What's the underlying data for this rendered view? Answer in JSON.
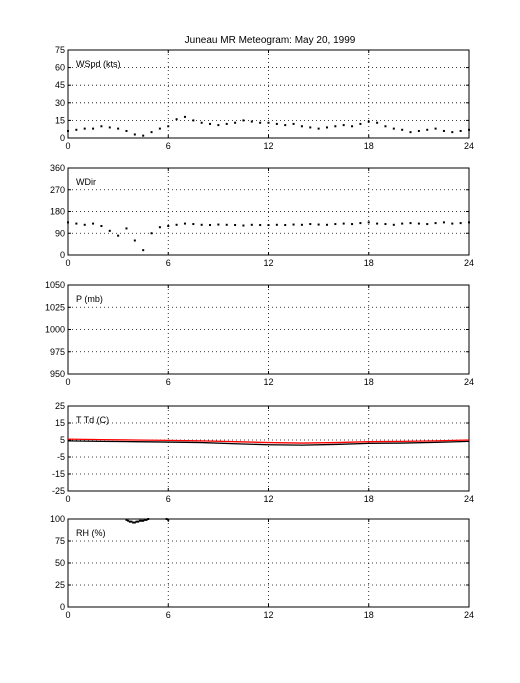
{
  "figure": {
    "title": "Juneau MR Meteogram:        May 20, 1999"
  },
  "chart_data": [
    {
      "type": "scatter",
      "label": "WSpd (kts)",
      "xlim": [
        0,
        24
      ],
      "ylim": [
        0,
        75
      ],
      "xticks": [
        "0",
        "6",
        "12",
        "18",
        "24"
      ],
      "yticks": [
        "0",
        "15",
        "30",
        "45",
        "60",
        "75"
      ],
      "grid": true,
      "series": [
        {
          "color": "#000000",
          "x": [
            0,
            0.5,
            1,
            1.5,
            2,
            2.5,
            3,
            3.5,
            4,
            4.5,
            5,
            5.5,
            6,
            6.5,
            7,
            7.5,
            8,
            8.5,
            9,
            9.5,
            10,
            10.5,
            11,
            11.5,
            12,
            12.5,
            13,
            13.5,
            14,
            14.5,
            15,
            15.5,
            16,
            16.5,
            17,
            17.5,
            18,
            18.5,
            19,
            19.5,
            20,
            20.5,
            21,
            21.5,
            22,
            22.5,
            23,
            23.5,
            24
          ],
          "y": [
            6,
            7,
            8,
            8,
            10,
            9,
            8,
            6,
            3,
            2,
            5,
            8,
            10,
            16,
            18,
            15,
            13,
            12,
            11,
            12,
            13,
            15,
            14,
            13,
            13,
            12,
            11,
            12,
            10,
            9,
            8,
            9,
            10,
            11,
            10,
            12,
            14,
            13,
            10,
            8,
            7,
            5,
            6,
            7,
            8,
            6,
            5,
            6,
            7
          ]
        }
      ]
    },
    {
      "type": "scatter",
      "label": "WDir",
      "xlim": [
        0,
        24
      ],
      "ylim": [
        0,
        360
      ],
      "xticks": [
        "0",
        "6",
        "12",
        "18",
        "24"
      ],
      "yticks": [
        "0",
        "90",
        "180",
        "270",
        "360"
      ],
      "grid": true,
      "series": [
        {
          "color": "#000000",
          "x": [
            0,
            0.5,
            1,
            1.5,
            2,
            2.5,
            3,
            3.5,
            4,
            4.5,
            5,
            5.5,
            6,
            6.5,
            7,
            7.5,
            8,
            8.5,
            9,
            9.5,
            10,
            10.5,
            11,
            11.5,
            12,
            12.5,
            13,
            13.5,
            14,
            14.5,
            15,
            15.5,
            16,
            16.5,
            17,
            17.5,
            18,
            18.5,
            19,
            19.5,
            20,
            20.5,
            21,
            21.5,
            22,
            22.5,
            23,
            23.5,
            24
          ],
          "y": [
            135,
            130,
            125,
            130,
            120,
            100,
            80,
            110,
            60,
            20,
            90,
            115,
            120,
            125,
            130,
            128,
            125,
            124,
            126,
            125,
            124,
            122,
            125,
            124,
            124,
            125,
            124,
            126,
            125,
            128,
            126,
            125,
            128,
            130,
            128,
            132,
            135,
            130,
            128,
            125,
            130,
            132,
            130,
            128,
            132,
            135,
            130,
            132,
            135
          ]
        }
      ]
    },
    {
      "type": "scatter",
      "label": "P (mb)",
      "xlim": [
        0,
        24
      ],
      "ylim": [
        950,
        1050
      ],
      "xticks": [
        "0",
        "6",
        "12",
        "18",
        "24"
      ],
      "yticks": [
        "950",
        "975",
        "1000",
        "1025",
        "1050"
      ],
      "grid": true,
      "series": []
    },
    {
      "type": "line",
      "label": "T Td (C)",
      "xlim": [
        0,
        24
      ],
      "ylim": [
        -25,
        25
      ],
      "xticks": [
        "0",
        "6",
        "12",
        "18",
        "24"
      ],
      "yticks": [
        "-25",
        "-15",
        "-5",
        "5",
        "15",
        "25"
      ],
      "grid": true,
      "series": [
        {
          "color": "#ff0000",
          "x": [
            0,
            2,
            4,
            6,
            8,
            10,
            12,
            14,
            16,
            18,
            20,
            22,
            24
          ],
          "y": [
            5.5,
            5.2,
            5,
            4.8,
            4.5,
            4,
            3.5,
            3.2,
            3.5,
            4,
            4.2,
            4.5,
            5
          ]
        },
        {
          "color": "#000000",
          "x": [
            0,
            2,
            4,
            6,
            8,
            10,
            12,
            14,
            16,
            18,
            20,
            22,
            24
          ],
          "y": [
            4.5,
            4.2,
            4,
            3.8,
            3.5,
            2.8,
            2.2,
            2,
            2.4,
            3,
            3.2,
            3.6,
            4.2
          ]
        }
      ]
    },
    {
      "type": "scatter",
      "label": "RH (%)",
      "xlim": [
        0,
        24
      ],
      "ylim": [
        0,
        100
      ],
      "xticks": [
        "0",
        "6",
        "12",
        "18",
        "24"
      ],
      "yticks": [
        "0",
        "25",
        "50",
        "75",
        "100"
      ],
      "grid": true,
      "series": [
        {
          "color": "#000000",
          "x": [
            3.5,
            3.6,
            3.7,
            3.8,
            3.9,
            4,
            4.1,
            4.2,
            4.3,
            4.4,
            4.5,
            4.6,
            4.7,
            4.8,
            5.9,
            6
          ],
          "y": [
            99,
            98,
            97,
            97,
            96,
            96,
            97,
            97,
            98,
            98,
            98,
            99,
            99,
            100,
            100,
            99
          ]
        }
      ]
    }
  ]
}
